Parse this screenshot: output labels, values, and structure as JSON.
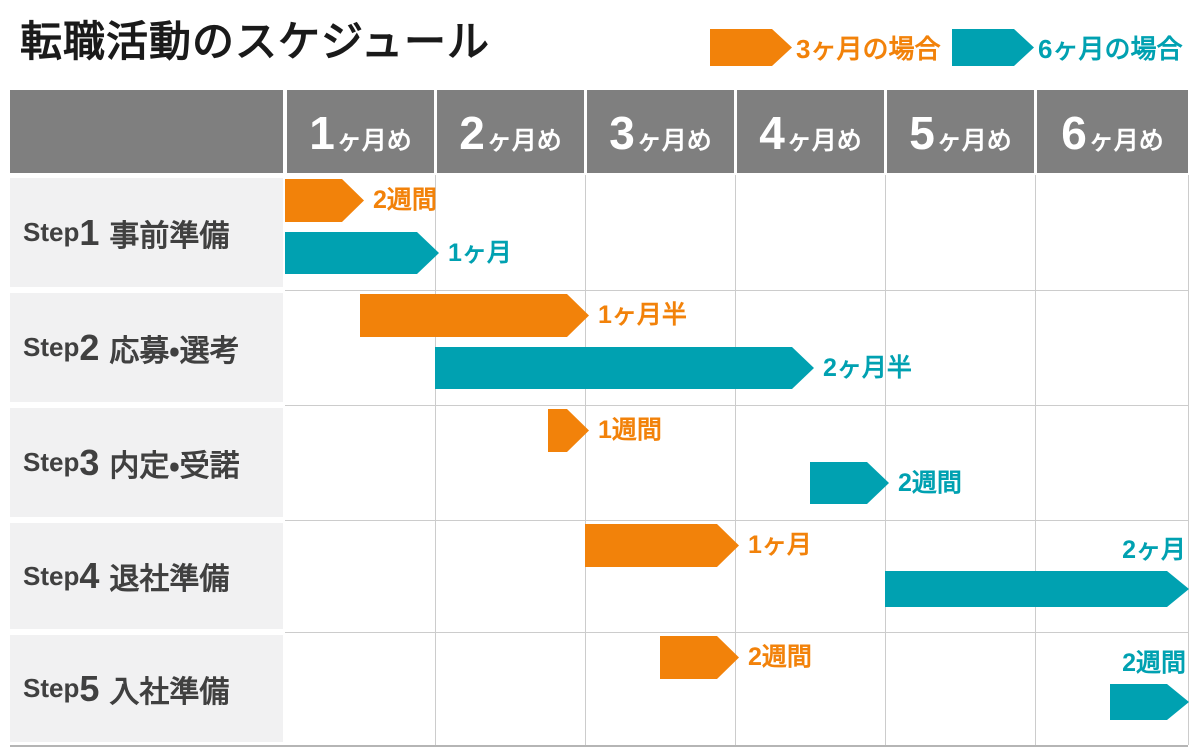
{
  "title": "転職活動のスケジュール",
  "legend": {
    "items": [
      {
        "label": "3ヶ月の場合",
        "color": "#F2820A"
      },
      {
        "label": "6ヶ月の場合",
        "color": "#00A1B1"
      }
    ]
  },
  "header": {
    "columns": [
      {
        "num": "1",
        "unit": "ヶ月め"
      },
      {
        "num": "2",
        "unit": "ヶ月め"
      },
      {
        "num": "3",
        "unit": "ヶ月め"
      },
      {
        "num": "4",
        "unit": "ヶ月め"
      },
      {
        "num": "5",
        "unit": "ヶ月め"
      },
      {
        "num": "6",
        "unit": "ヶ月め"
      }
    ]
  },
  "rows": [
    {
      "prefix": "Step",
      "num": "1",
      "name": "事前準備"
    },
    {
      "prefix": "Step",
      "num": "2",
      "name": "応募・選考"
    },
    {
      "prefix": "Step",
      "num": "3",
      "name": "内定・受諾"
    },
    {
      "prefix": "Step",
      "num": "4",
      "name": "退社準備"
    },
    {
      "prefix": "Step",
      "num": "5",
      "name": "入社準備"
    }
  ],
  "colors": {
    "orange": "#F2820A",
    "teal": "#00A1B1",
    "header_bg": "#7F7F7F",
    "row_label_bg": "#F1F1F2",
    "grid_line": "#CCCCCC",
    "step_text": "#404040",
    "title_text": "#1A1A1A"
  },
  "chart_data": {
    "type": "bar",
    "variant": "gantt",
    "title": "転職活動のスケジュール",
    "x_unit": "months",
    "x_range": [
      0,
      6
    ],
    "categories": [
      "1ヶ月め",
      "2ヶ月め",
      "3ヶ月め",
      "4ヶ月め",
      "5ヶ月め",
      "6ヶ月め"
    ],
    "tasks": [
      "Step1 事前準備",
      "Step2 応募・選考",
      "Step3 内定・受諾",
      "Step4 退社準備",
      "Step5 入社準備"
    ],
    "legend_position": "top-right",
    "grid": true,
    "series": [
      {
        "name": "3ヶ月の場合",
        "color": "#F2820A",
        "bars": [
          {
            "row": 0,
            "start": 0,
            "duration": 0.5,
            "label": "2週間",
            "label_position": "right"
          },
          {
            "row": 1,
            "start": 0.5,
            "duration": 1.5,
            "label": "1ヶ月半",
            "label_position": "right"
          },
          {
            "row": 2,
            "start": 1.75,
            "duration": 0.25,
            "label": "1週間",
            "label_position": "right"
          },
          {
            "row": 3,
            "start": 2,
            "duration": 1,
            "label": "1ヶ月",
            "label_position": "right"
          },
          {
            "row": 4,
            "start": 2.5,
            "duration": 0.5,
            "label": "2週間",
            "label_position": "right"
          }
        ]
      },
      {
        "name": "6ヶ月の場合",
        "color": "#00A1B1",
        "bars": [
          {
            "row": 0,
            "start": 0,
            "duration": 1,
            "label": "1ヶ月",
            "label_position": "right"
          },
          {
            "row": 1,
            "start": 1,
            "duration": 2.5,
            "label": "2ヶ月半",
            "label_position": "right"
          },
          {
            "row": 2,
            "start": 3.5,
            "duration": 0.5,
            "label": "2週間",
            "label_position": "right"
          },
          {
            "row": 3,
            "start": 4,
            "duration": 2,
            "label": "2ヶ月",
            "label_position": "above-right"
          },
          {
            "row": 4,
            "start": 5.5,
            "duration": 0.5,
            "label": "2週間",
            "label_position": "above-right"
          }
        ]
      }
    ]
  }
}
